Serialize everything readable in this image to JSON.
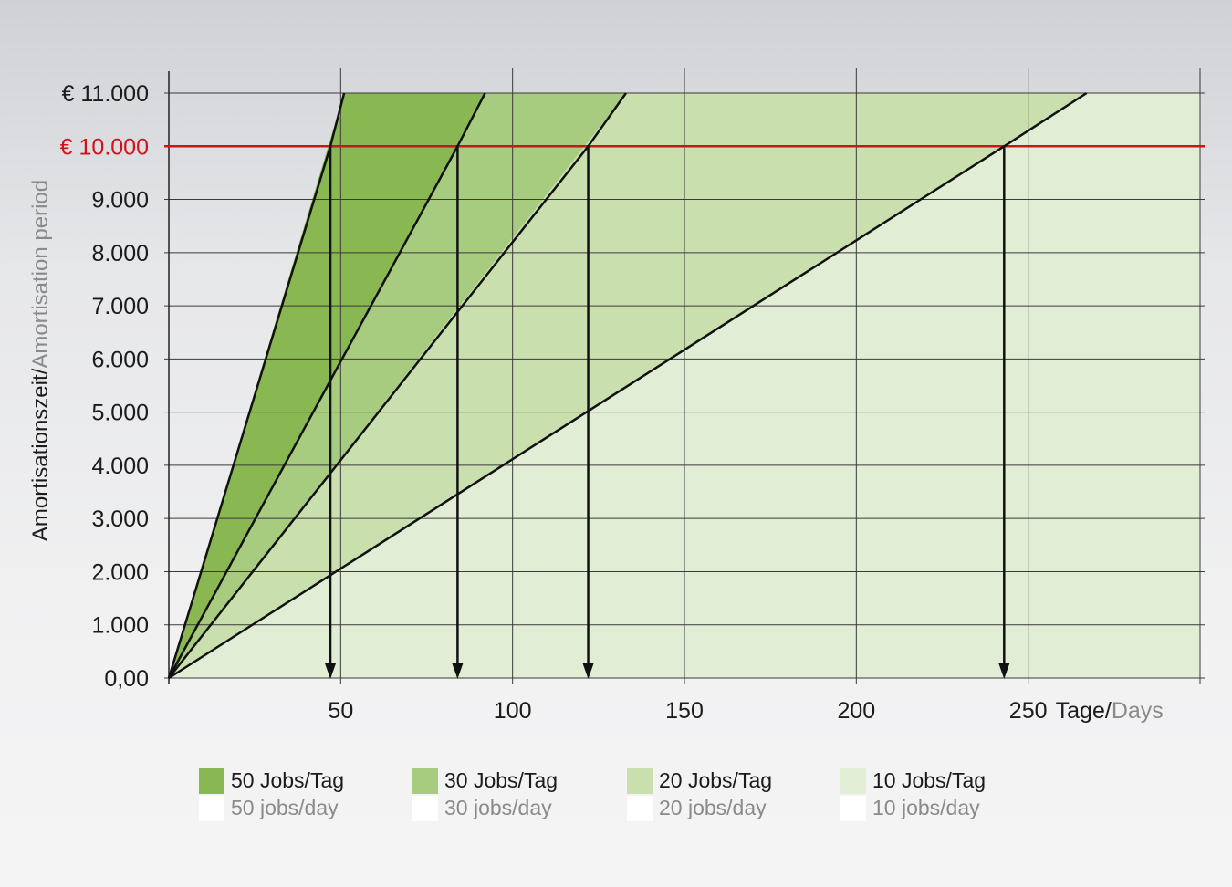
{
  "chart_data": {
    "type": "area",
    "ylabel_de": "Amortisationszeit/",
    "ylabel_en": "Amortisation period",
    "xlabel_de": "Tage/",
    "xlabel_en": "Days",
    "ylim": [
      0,
      11000
    ],
    "xlim": [
      0,
      300
    ],
    "y_ticks": [
      0,
      1000,
      2000,
      3000,
      4000,
      5000,
      6000,
      7000,
      8000,
      9000,
      10000,
      11000
    ],
    "y_tick_labels": [
      "0,00",
      "1.000",
      "2.000",
      "3.000",
      "4.000",
      "5.000",
      "6.000",
      "7.000",
      "8.000",
      "9.000",
      "€ 10.000",
      "€ 11.000"
    ],
    "x_ticks": [
      50,
      100,
      150,
      200,
      250
    ],
    "x_tick_labels": [
      "50",
      "100",
      "150",
      "200",
      "250"
    ],
    "threshold": {
      "value": 10000,
      "color": "#d0121b"
    },
    "grid": true,
    "series": [
      {
        "label_de": "50 Jobs/Tag",
        "label_en": "50 jobs/day",
        "color": "#89b852",
        "x": [
          0,
          47,
          51
        ],
        "y": [
          0,
          10000,
          11000
        ],
        "breakeven_day": 47
      },
      {
        "label_de": "30 Jobs/Tag",
        "label_en": "30 jobs/day",
        "color": "#a7cb7f",
        "x": [
          0,
          84,
          92
        ],
        "y": [
          0,
          10000,
          11000
        ],
        "breakeven_day": 84
      },
      {
        "label_de": "20 Jobs/Tag",
        "label_en": "20 jobs/day",
        "color": "#c9dfae",
        "x": [
          0,
          122,
          133
        ],
        "y": [
          0,
          10000,
          11000
        ],
        "breakeven_day": 122
      },
      {
        "label_de": "10 Jobs/Tag",
        "label_en": "10 jobs/day",
        "color": "#e2edd6",
        "x": [
          0,
          243,
          267
        ],
        "y": [
          0,
          10000,
          11000
        ],
        "breakeven_day": 243
      }
    ],
    "legend_position": "bottom"
  }
}
